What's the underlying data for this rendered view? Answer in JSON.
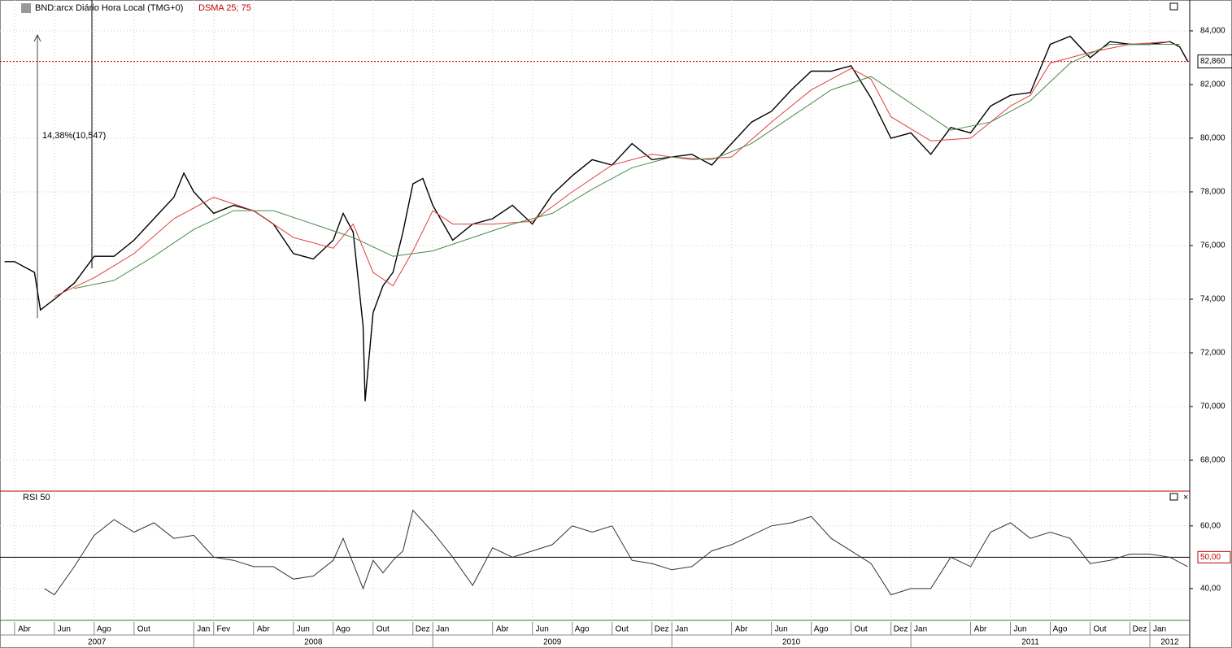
{
  "chart_data": [
    {
      "type": "line",
      "title": "BND:arcx Diário Hora Local (TMG+0)",
      "indicator": "DSMA 25; 75",
      "xlim": [
        -0.73,
        59.0
      ],
      "xticks": [
        {
          "value": 0,
          "label": "Abr"
        },
        {
          "value": 2,
          "label": "Jun"
        },
        {
          "value": 4,
          "label": "Ago"
        },
        {
          "value": 6,
          "label": "Out"
        },
        {
          "value": 9,
          "label": "Jan"
        },
        {
          "value": 10,
          "label": "Fev"
        },
        {
          "value": 12,
          "label": "Abr"
        },
        {
          "value": 14,
          "label": "Jun"
        },
        {
          "value": 16,
          "label": "Ago"
        },
        {
          "value": 18,
          "label": "Out"
        },
        {
          "value": 20,
          "label": "Dez"
        },
        {
          "value": 21,
          "label": "Jan"
        },
        {
          "value": 24,
          "label": "Abr"
        },
        {
          "value": 26,
          "label": "Jun"
        },
        {
          "value": 28,
          "label": "Ago"
        },
        {
          "value": 30,
          "label": "Out"
        },
        {
          "value": 32,
          "label": "Dez"
        },
        {
          "value": 33,
          "label": "Jan"
        },
        {
          "value": 36,
          "label": "Abr"
        },
        {
          "value": 38,
          "label": "Jun"
        },
        {
          "value": 40,
          "label": "Ago"
        },
        {
          "value": 42,
          "label": "Out"
        },
        {
          "value": 44,
          "label": "Dez"
        },
        {
          "value": 45,
          "label": "Jan"
        },
        {
          "value": 48,
          "label": "Abr"
        },
        {
          "value": 50,
          "label": "Jun"
        },
        {
          "value": 52,
          "label": "Ago"
        },
        {
          "value": 54,
          "label": "Out"
        },
        {
          "value": 56,
          "label": "Dez"
        },
        {
          "value": 57,
          "label": "Jan"
        }
      ],
      "years": [
        {
          "value": -3,
          "label": "2007"
        },
        {
          "value": 9,
          "label": "2008"
        },
        {
          "value": 21,
          "label": "2009"
        },
        {
          "value": 33,
          "label": "2010"
        },
        {
          "value": 45,
          "label": "2011"
        },
        {
          "value": 57,
          "label": "2012"
        }
      ],
      "ylim": [
        66.88,
        85.15
      ],
      "yticks": [
        {
          "value": 68,
          "label": "68,000"
        },
        {
          "value": 70,
          "label": "70,000"
        },
        {
          "value": 72,
          "label": "72,000"
        },
        {
          "value": 74,
          "label": "74,000"
        },
        {
          "value": 76,
          "label": "76,000"
        },
        {
          "value": 78,
          "label": "78,000"
        },
        {
          "value": 80,
          "label": "80,000"
        },
        {
          "value": 82,
          "label": "82,000"
        },
        {
          "value": 84,
          "label": "84,000"
        }
      ],
      "grid": true,
      "last_price": {
        "value": 82.86,
        "label": "82,860",
        "color": "#c00000"
      },
      "annotation": {
        "text": "14,38%(10,547)",
        "from": 73.3,
        "to": 83.847
      },
      "series": [
        {
          "color": "#000000",
          "x": [
            -0.5,
            0,
            1,
            1.3,
            2,
            3,
            4,
            5,
            6,
            7,
            8,
            8.5,
            9,
            10,
            11,
            12,
            13,
            14,
            15,
            16,
            16.5,
            17,
            17.5,
            17.6,
            18,
            18.5,
            19,
            19.5,
            20,
            20.5,
            21,
            22,
            23,
            24,
            25,
            26,
            27,
            28,
            29,
            30,
            31,
            32,
            33,
            34,
            35,
            36,
            37,
            38,
            39,
            40,
            41,
            42,
            43,
            44,
            45,
            46,
            47,
            48,
            49,
            50,
            51,
            52,
            53,
            54,
            55,
            56,
            57,
            58,
            58.5,
            58.9
          ],
          "values": [
            75.4,
            75.4,
            75.0,
            73.6,
            74.0,
            74.6,
            75.6,
            75.6,
            76.2,
            77.0,
            77.8,
            78.7,
            78.0,
            77.2,
            77.5,
            77.3,
            76.8,
            75.7,
            75.5,
            76.2,
            77.2,
            76.5,
            73.0,
            70.2,
            73.5,
            74.5,
            75.0,
            76.5,
            78.3,
            78.5,
            77.5,
            76.2,
            76.8,
            77.0,
            77.5,
            76.8,
            77.9,
            78.6,
            79.2,
            79.0,
            79.8,
            79.2,
            79.3,
            79.4,
            79.0,
            79.8,
            80.6,
            81.0,
            81.8,
            82.5,
            82.5,
            82.7,
            81.5,
            80.0,
            80.2,
            79.4,
            80.4,
            80.2,
            81.2,
            81.6,
            81.7,
            83.5,
            83.8,
            83.0,
            83.6,
            83.5,
            83.5,
            83.6,
            83.4,
            82.86
          ]
        },
        {
          "color": "#e04040",
          "x": [
            2,
            4,
            6,
            8,
            10,
            12,
            14,
            16,
            17,
            18,
            19,
            20,
            21,
            22,
            24,
            26,
            28,
            30,
            32,
            34,
            36,
            38,
            40,
            42,
            43,
            44,
            46,
            48,
            50,
            51,
            52,
            54,
            56,
            58
          ],
          "values": [
            74.1,
            74.8,
            75.7,
            77.0,
            77.8,
            77.3,
            76.3,
            75.9,
            76.8,
            75.0,
            74.5,
            75.8,
            77.3,
            76.8,
            76.8,
            76.9,
            78.0,
            79.0,
            79.4,
            79.2,
            79.3,
            80.6,
            81.8,
            82.6,
            82.2,
            80.8,
            79.9,
            80.0,
            81.2,
            81.6,
            82.8,
            83.2,
            83.5,
            83.6
          ]
        },
        {
          "color": "#4a8a4a",
          "x": [
            3,
            5,
            7,
            9,
            11,
            13,
            15,
            17,
            19,
            21,
            23,
            25,
            27,
            29,
            31,
            33,
            35,
            37,
            39,
            41,
            43,
            45,
            47,
            49,
            51,
            53,
            55,
            57,
            58.5
          ],
          "values": [
            74.4,
            74.7,
            75.6,
            76.6,
            77.3,
            77.3,
            76.8,
            76.3,
            75.6,
            75.8,
            76.3,
            76.8,
            77.2,
            78.1,
            78.9,
            79.3,
            79.2,
            79.8,
            80.8,
            81.8,
            82.3,
            81.3,
            80.3,
            80.6,
            81.4,
            82.8,
            83.5,
            83.5,
            83.5
          ]
        }
      ]
    },
    {
      "type": "line",
      "title": "RSI 50",
      "ylim": [
        30.1,
        70.6
      ],
      "yticks": [
        {
          "value": 40,
          "label": "40,00"
        },
        {
          "value": 60,
          "label": "60,00"
        }
      ],
      "level": {
        "value": 50,
        "label": "50,00"
      },
      "series": [
        {
          "color": "#333333",
          "x": [
            1.5,
            2,
            3,
            4,
            5,
            6,
            7,
            8,
            9,
            10,
            11,
            12,
            13,
            14,
            15,
            16,
            16.5,
            17,
            17.5,
            18,
            18.5,
            19,
            19.5,
            20,
            21,
            22,
            23,
            24,
            25,
            26,
            27,
            28,
            29,
            30,
            31,
            32,
            33,
            34,
            35,
            36,
            37,
            38,
            39,
            40,
            41,
            42,
            43,
            44,
            45,
            46,
            47,
            48,
            49,
            50,
            51,
            52,
            53,
            54,
            55,
            56,
            57,
            58,
            58.9
          ],
          "values": [
            40,
            38,
            47,
            57,
            62,
            58,
            61,
            56,
            57,
            50,
            49,
            47,
            47,
            43,
            44,
            49,
            56,
            48,
            40,
            49,
            45,
            49,
            52,
            65,
            58,
            50,
            41,
            53,
            50,
            52,
            54,
            60,
            58,
            60,
            49,
            48,
            46,
            47,
            52,
            54,
            57,
            60,
            61,
            63,
            56,
            52,
            48,
            38,
            40,
            40,
            50,
            47,
            58,
            61,
            56,
            58,
            56,
            48,
            49,
            51,
            51,
            50,
            47
          ]
        }
      ]
    }
  ]
}
